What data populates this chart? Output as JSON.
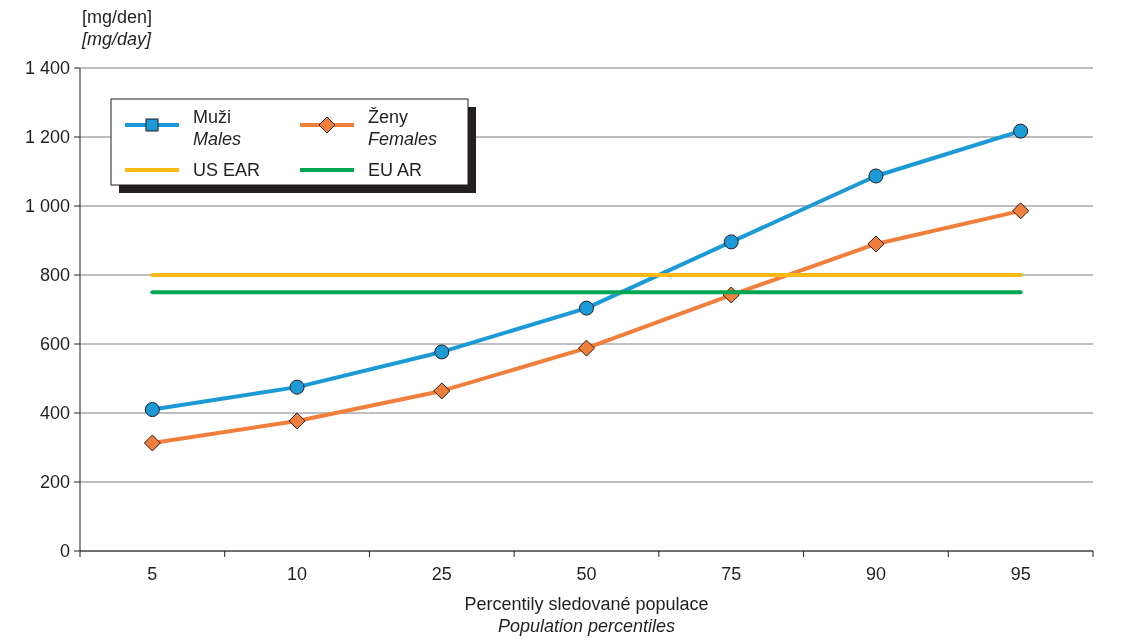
{
  "chart_data": {
    "type": "line",
    "ylabel": "[mg/den]\n[mg/day]",
    "xlabel": "Percentily sledované populace\nPopulation percentiles",
    "categories": [
      "5",
      "10",
      "25",
      "50",
      "75",
      "90",
      "95"
    ],
    "series": [
      {
        "name": "Muži\nMales",
        "color": "#1b9ad6",
        "marker": "circle",
        "values": [
          410,
          475,
          577,
          704,
          896,
          1087,
          1217
        ]
      },
      {
        "name": "Ženy\nFemales",
        "color": "#f07f3c",
        "marker": "diamond",
        "values": [
          313,
          377,
          464,
          588,
          742,
          890,
          986
        ]
      },
      {
        "name": "US EAR",
        "color": "#fdb913",
        "marker": "none",
        "values": [
          800,
          800,
          800,
          800,
          800,
          800,
          800
        ]
      },
      {
        "name": "EU AR",
        "color": "#00a651",
        "marker": "none",
        "values": [
          750,
          750,
          750,
          750,
          750,
          750,
          750
        ]
      }
    ],
    "ylim": [
      0,
      1400
    ],
    "yticks": [
      0,
      200,
      400,
      600,
      800,
      {
        "value": 1000,
        "label": "1 000"
      },
      {
        "value": 1200,
        "label": "1 200"
      },
      {
        "value": 1400,
        "label": "1 400"
      }
    ],
    "grid": "y",
    "legend": "top left",
    "line_style": "solid"
  }
}
